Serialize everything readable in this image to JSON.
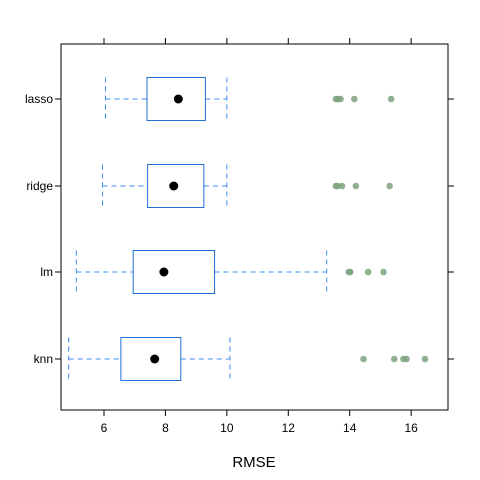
{
  "chart_data": {
    "type": "boxplot",
    "title": "",
    "xlabel": "RMSE",
    "ylabel": "",
    "xlim": [
      4.6,
      17.2
    ],
    "x_ticks": [
      6,
      8,
      10,
      12,
      14,
      16
    ],
    "grid": false,
    "colors": {
      "box": "#1f6fd6",
      "whisker": "#3f8ef5",
      "median": "#000000",
      "outlier": "#7ea27e",
      "frame": "#000000"
    },
    "categories": [
      "lasso",
      "ridge",
      "lm",
      "knn"
    ],
    "boxes": [
      {
        "name": "lasso",
        "whisker_low": 6.05,
        "q1": 7.4,
        "median": 8.42,
        "q3": 9.3,
        "whisker_high": 10.0,
        "outliers": [
          13.55,
          13.62,
          13.7,
          14.15,
          15.35
        ]
      },
      {
        "name": "ridge",
        "whisker_low": 5.95,
        "q1": 7.42,
        "median": 8.27,
        "q3": 9.25,
        "whisker_high": 10.0,
        "outliers": [
          13.55,
          13.6,
          13.75,
          14.2,
          15.3
        ]
      },
      {
        "name": "lm",
        "whisker_low": 5.1,
        "q1": 6.95,
        "median": 7.95,
        "q3": 9.6,
        "whisker_high": 13.25,
        "outliers": [
          13.97,
          14.02,
          14.6,
          15.1
        ]
      },
      {
        "name": "knn",
        "whisker_low": 4.85,
        "q1": 6.55,
        "median": 7.65,
        "q3": 8.5,
        "whisker_high": 10.1,
        "outliers": [
          14.45,
          15.45,
          15.75,
          15.85,
          16.45
        ]
      }
    ]
  }
}
